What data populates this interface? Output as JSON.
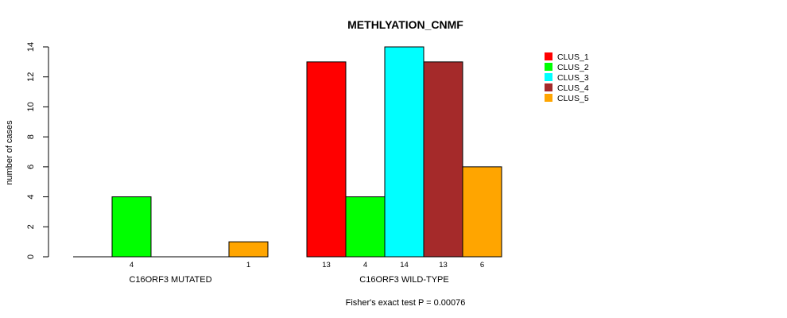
{
  "chart_data": {
    "type": "bar",
    "title": "METHLYATION_CNMF",
    "ylabel": "number of cases",
    "xlabel": "",
    "footnote": "Fisher's exact test P = 0.00076",
    "ylim": [
      0,
      14
    ],
    "yticks": [
      "0",
      "2",
      "4",
      "6",
      "8",
      "10",
      "12",
      "14"
    ],
    "groups": [
      "C16ORF3 MUTATED",
      "C16ORF3 WILD-TYPE"
    ],
    "series": [
      {
        "name": "CLUS_1",
        "color": "#ff0000",
        "values": [
          0,
          13
        ],
        "labels": [
          "",
          "13"
        ]
      },
      {
        "name": "CLUS_2",
        "color": "#00ff00",
        "values": [
          4,
          4
        ],
        "labels": [
          "4",
          "4"
        ]
      },
      {
        "name": "CLUS_3",
        "color": "#00ffff",
        "values": [
          0,
          14
        ],
        "labels": [
          "",
          "14"
        ]
      },
      {
        "name": "CLUS_4",
        "color": "#a52a2a",
        "values": [
          0,
          13
        ],
        "labels": [
          "",
          "13"
        ]
      },
      {
        "name": "CLUS_5",
        "color": "#ffa500",
        "values": [
          1,
          6
        ],
        "labels": [
          "1",
          "6"
        ]
      }
    ],
    "legend_position": "top-right",
    "grid": false
  }
}
